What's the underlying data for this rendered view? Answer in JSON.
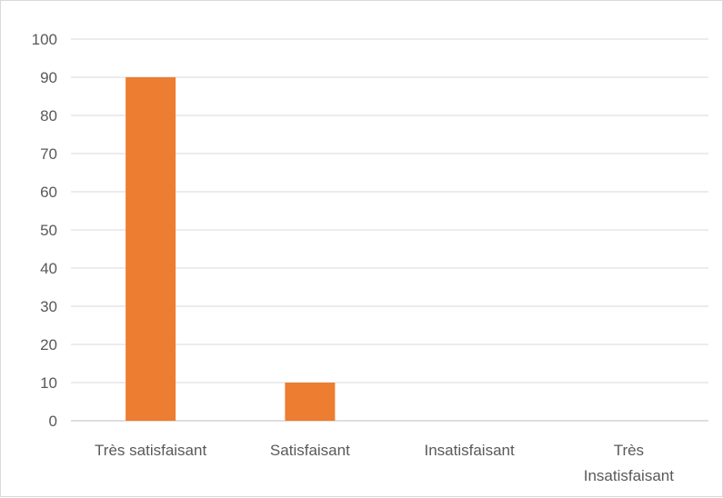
{
  "chart_data": {
    "type": "bar",
    "title": "",
    "xlabel": "",
    "ylabel": "",
    "categories": [
      [
        "Très satisfaisant"
      ],
      [
        "Satisfaisant"
      ],
      [
        "Insatisfaisant"
      ],
      [
        "Très",
        "Insatisfaisant"
      ]
    ],
    "values": [
      90,
      10,
      0,
      0
    ],
    "ylim": [
      0,
      100
    ],
    "yticks": [
      0,
      10,
      20,
      30,
      40,
      50,
      60,
      70,
      80,
      90,
      100
    ],
    "grid": true,
    "legend": "none",
    "bar_color": "#ED7D31",
    "grid_color": "#D9D9D9",
    "axis_color": "#BFBFBF"
  }
}
